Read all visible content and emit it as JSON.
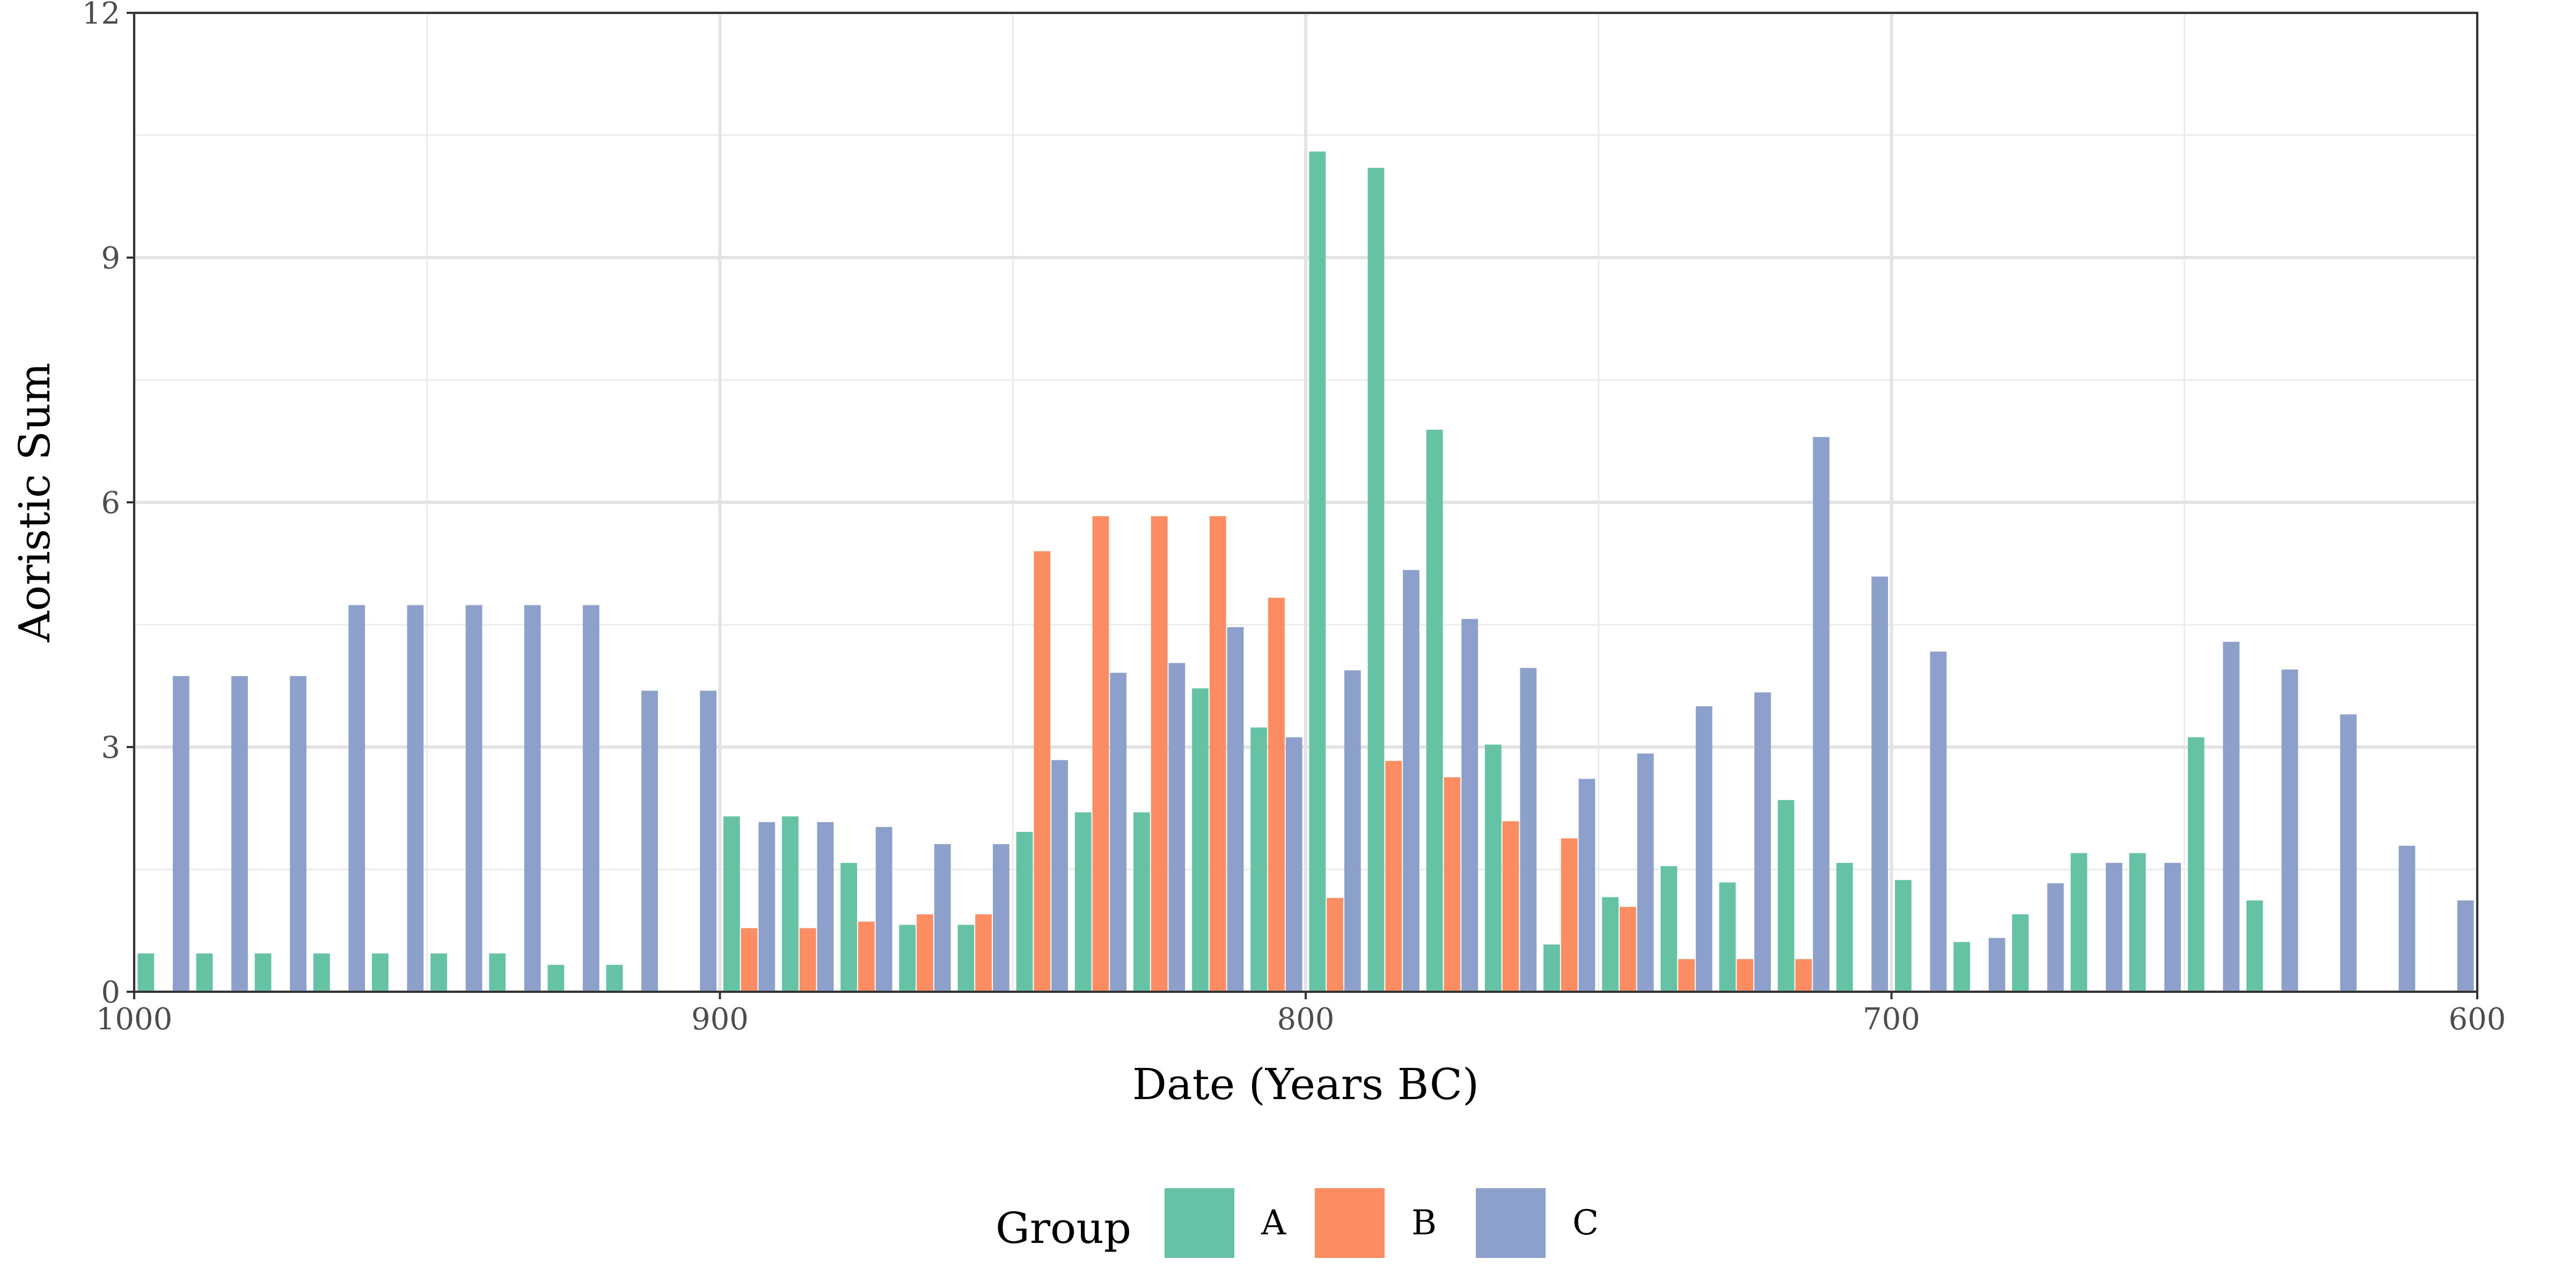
{
  "chart_data": {
    "type": "bar",
    "xlabel": "Date (Years BC)",
    "ylabel": "Aoristic Sum",
    "xlim": [
      1000,
      600
    ],
    "x_reversed": true,
    "ylim": [
      0,
      12
    ],
    "x_ticks": [
      1000,
      900,
      800,
      700,
      600
    ],
    "y_ticks": [
      0,
      3,
      6,
      9,
      12
    ],
    "x_tick_labels": [
      "1000",
      "900",
      "800",
      "700",
      "600"
    ],
    "y_tick_labels": [
      "0",
      "3",
      "6",
      "9",
      "12"
    ],
    "bin_width_years": 10,
    "grid": true,
    "legend_position": "bottom",
    "legend_title": "Group",
    "series": [
      {
        "name": "A",
        "color": "#66c2a5",
        "x": [
          995,
          985,
          975,
          965,
          955,
          945,
          935,
          925,
          915,
          905,
          895,
          885,
          875,
          865,
          855,
          845,
          835,
          825,
          815,
          805,
          795,
          785,
          775,
          765,
          755,
          745,
          735,
          725,
          715,
          705,
          695,
          685,
          675,
          665,
          655,
          645,
          635,
          625,
          615,
          605
        ],
        "values": [
          0.47,
          0.47,
          0.47,
          0.47,
          0.47,
          0.47,
          0.47,
          0.33,
          0.33,
          0,
          2.15,
          2.15,
          1.58,
          0.82,
          0.82,
          1.96,
          2.2,
          2.2,
          3.72,
          3.24,
          10.3,
          10.1,
          6.89,
          3.03,
          0.58,
          1.16,
          1.54,
          1.34,
          2.35,
          1.58,
          1.37,
          0.61,
          0.95,
          1.7,
          1.7,
          3.12,
          1.12,
          0,
          0,
          0
        ]
      },
      {
        "name": "B",
        "color": "#fc8d62",
        "x": [
          995,
          985,
          975,
          965,
          955,
          945,
          935,
          925,
          915,
          905,
          895,
          885,
          875,
          865,
          855,
          845,
          835,
          825,
          815,
          805,
          795,
          785,
          775,
          765,
          755,
          745,
          735,
          725,
          715,
          705,
          695,
          685,
          675,
          665,
          655,
          645,
          635,
          625,
          615,
          605
        ],
        "values": [
          0,
          0,
          0,
          0,
          0,
          0,
          0,
          0,
          0,
          0,
          0.78,
          0.78,
          0.86,
          0.95,
          0.95,
          5.4,
          5.83,
          5.83,
          5.83,
          4.83,
          1.15,
          2.83,
          2.63,
          2.09,
          1.88,
          1.04,
          0.4,
          0.4,
          0.4,
          0,
          0,
          0,
          0,
          0,
          0,
          0,
          0,
          0,
          0,
          0
        ]
      },
      {
        "name": "C",
        "color": "#8da0cb",
        "x": [
          995,
          985,
          975,
          965,
          955,
          945,
          935,
          925,
          915,
          905,
          895,
          885,
          875,
          865,
          855,
          845,
          835,
          825,
          815,
          805,
          795,
          785,
          775,
          765,
          755,
          745,
          735,
          725,
          715,
          705,
          695,
          685,
          675,
          665,
          655,
          645,
          635,
          625,
          615,
          605
        ],
        "values": [
          3.87,
          3.87,
          3.87,
          4.74,
          4.74,
          4.74,
          4.74,
          4.74,
          3.69,
          3.69,
          2.08,
          2.08,
          2.02,
          1.81,
          1.81,
          2.84,
          3.91,
          4.03,
          4.47,
          3.12,
          3.94,
          5.17,
          4.57,
          3.97,
          2.61,
          2.92,
          3.5,
          3.67,
          6.8,
          5.09,
          4.17,
          0.66,
          1.33,
          1.58,
          1.58,
          4.29,
          3.95,
          3.4,
          1.79,
          1.12
        ]
      }
    ]
  }
}
